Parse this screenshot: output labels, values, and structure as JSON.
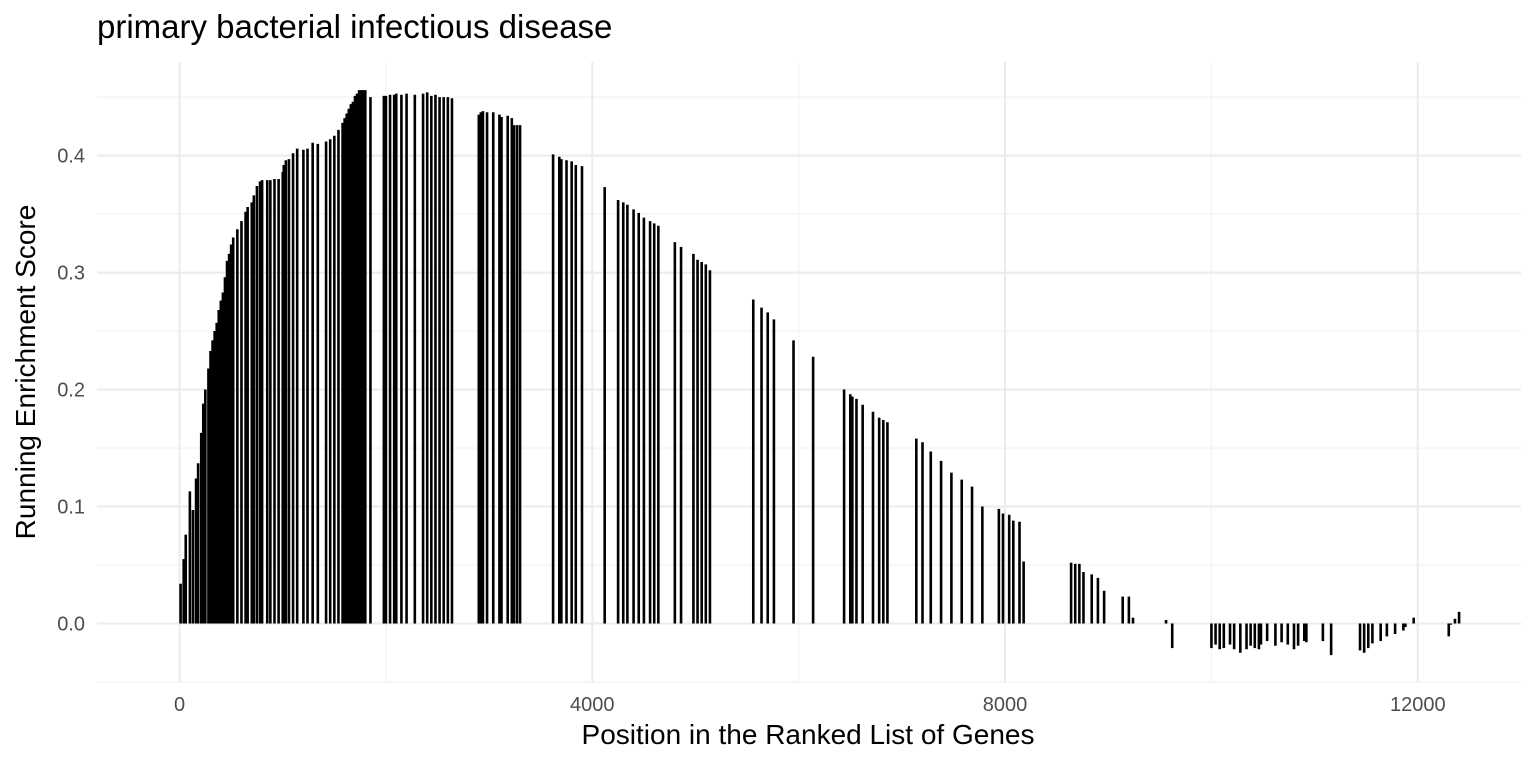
{
  "chart_data": {
    "type": "bar",
    "title": "primary bacterial infectious disease",
    "xlabel": "Position in the Ranked List of Genes",
    "ylabel": "Running Enrichment Score",
    "xlim": [
      -800,
      13000
    ],
    "ylim": [
      -0.05,
      0.48
    ],
    "x_ticks": [
      0,
      4000,
      8000,
      12000
    ],
    "y_ticks": [
      0.0,
      0.1,
      0.2,
      0.3,
      0.4
    ],
    "y_tick_labels": [
      "0.0",
      "0.1",
      "0.2",
      "0.3",
      "0.4"
    ],
    "grid": true,
    "legend": "none",
    "bar_color": "#000000",
    "x": [
      10,
      40,
      60,
      100,
      130,
      160,
      180,
      210,
      230,
      250,
      280,
      300,
      320,
      340,
      360,
      380,
      400,
      420,
      440,
      460,
      480,
      500,
      520,
      560,
      600,
      640,
      660,
      700,
      720,
      750,
      780,
      800,
      850,
      880,
      920,
      960,
      1000,
      1010,
      1030,
      1060,
      1100,
      1140,
      1200,
      1240,
      1290,
      1340,
      1420,
      1460,
      1500,
      1540,
      1580,
      1600,
      1620,
      1640,
      1660,
      1680,
      1700,
      1720,
      1740,
      1760,
      1780,
      1800,
      1850,
      1980,
      2000,
      2040,
      2080,
      2100,
      2150,
      2200,
      2280,
      2360,
      2400,
      2440,
      2480,
      2520,
      2560,
      2600,
      2640,
      2900,
      2920,
      2940,
      2980,
      3040,
      3100,
      3120,
      3180,
      3220,
      3240,
      3270,
      3300,
      3620,
      3680,
      3700,
      3750,
      3800,
      3840,
      3900,
      4120,
      4250,
      4300,
      4340,
      4400,
      4450,
      4500,
      4560,
      4600,
      4640,
      4800,
      4860,
      4980,
      5020,
      5060,
      5100,
      5140,
      5560,
      5640,
      5700,
      5760,
      5950,
      6140,
      6440,
      6500,
      6520,
      6560,
      6620,
      6720,
      6780,
      6820,
      6860,
      7140,
      7200,
      7280,
      7380,
      7480,
      7580,
      7680,
      7780,
      7940,
      7980,
      8040,
      8080,
      8140,
      8180,
      8640,
      8680,
      8720,
      8760,
      8840,
      8900,
      8960,
      9140,
      9200,
      9240,
      9560,
      9620,
      10000,
      10040,
      10080,
      10120,
      10180,
      10220,
      10280,
      10340,
      10380,
      10420,
      10460,
      10480,
      10540,
      10620,
      10680,
      10740,
      10800,
      10840,
      10900,
      10920,
      11080,
      11160,
      11440,
      11480,
      11520,
      11560,
      11640,
      11700,
      11780,
      11860,
      11880,
      11960,
      12300,
      12320,
      12360,
      12400
    ],
    "values": [
      0.034,
      0.055,
      0.076,
      0.113,
      0.097,
      0.124,
      0.137,
      0.163,
      0.188,
      0.2,
      0.218,
      0.233,
      0.242,
      0.25,
      0.257,
      0.268,
      0.276,
      0.283,
      0.296,
      0.31,
      0.316,
      0.324,
      0.33,
      0.337,
      0.344,
      0.352,
      0.356,
      0.36,
      0.366,
      0.374,
      0.378,
      0.379,
      0.379,
      0.379,
      0.38,
      0.38,
      0.386,
      0.392,
      0.396,
      0.397,
      0.402,
      0.406,
      0.405,
      0.406,
      0.411,
      0.41,
      0.412,
      0.414,
      0.417,
      0.422,
      0.428,
      0.432,
      0.436,
      0.44,
      0.444,
      0.446,
      0.451,
      0.453,
      0.456,
      0.456,
      0.456,
      0.456,
      0.45,
      0.451,
      0.451,
      0.452,
      0.452,
      0.453,
      0.452,
      0.453,
      0.452,
      0.453,
      0.454,
      0.451,
      0.452,
      0.45,
      0.45,
      0.45,
      0.449,
      0.435,
      0.437,
      0.438,
      0.437,
      0.437,
      0.435,
      0.433,
      0.434,
      0.432,
      0.426,
      0.426,
      0.426,
      0.401,
      0.399,
      0.397,
      0.396,
      0.395,
      0.392,
      0.391,
      0.373,
      0.362,
      0.36,
      0.358,
      0.354,
      0.351,
      0.347,
      0.344,
      0.342,
      0.34,
      0.326,
      0.322,
      0.316,
      0.311,
      0.309,
      0.307,
      0.302,
      0.277,
      0.27,
      0.266,
      0.26,
      0.242,
      0.228,
      0.2,
      0.196,
      0.194,
      0.192,
      0.187,
      0.181,
      0.176,
      0.174,
      0.172,
      0.158,
      0.155,
      0.147,
      0.139,
      0.129,
      0.123,
      0.117,
      0.1,
      0.098,
      0.094,
      0.093,
      0.088,
      0.087,
      0.053,
      0.052,
      0.051,
      0.051,
      0.044,
      0.042,
      0.039,
      0.028,
      0.023,
      0.023,
      0.005,
      0.003,
      -0.021,
      -0.021,
      -0.018,
      -0.022,
      -0.021,
      -0.018,
      -0.022,
      -0.025,
      -0.022,
      -0.019,
      -0.021,
      -0.022,
      -0.018,
      -0.015,
      -0.019,
      -0.016,
      -0.018,
      -0.022,
      -0.019,
      -0.015,
      -0.016,
      -0.015,
      -0.027,
      -0.023,
      -0.025,
      -0.021,
      -0.017,
      -0.015,
      -0.011,
      -0.009,
      -0.006,
      -0.003,
      0.005,
      -0.011,
      -0.001,
      0.004,
      0.01
    ]
  }
}
